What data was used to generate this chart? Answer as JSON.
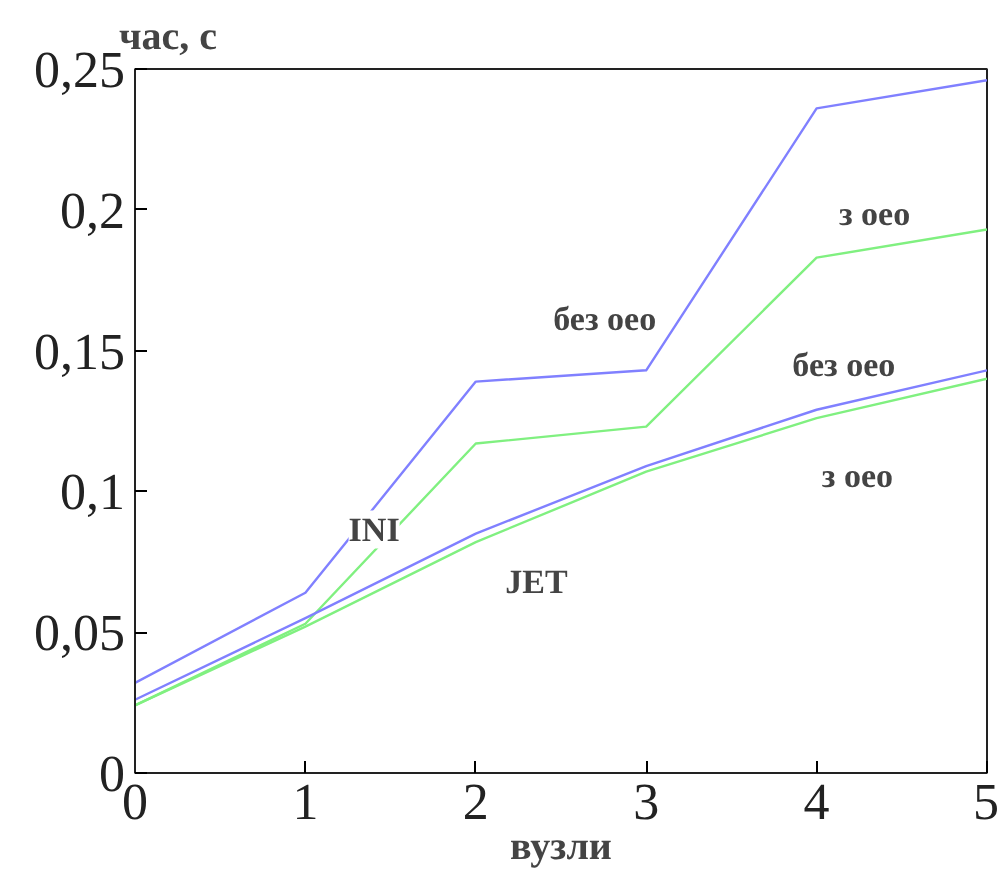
{
  "chart_data": {
    "type": "line",
    "ylabel": "час, с",
    "xlabel": "вузли",
    "x": [
      0,
      1,
      2,
      3,
      4,
      5
    ],
    "series": [
      {
        "color": "#8080ff",
        "values": [
          0.032,
          0.064,
          0.139,
          0.143,
          0.236,
          0.246
        ]
      },
      {
        "color": "#80f080",
        "values": [
          0.024,
          0.053,
          0.117,
          0.123,
          0.183,
          0.193
        ]
      },
      {
        "color": "#8080ff",
        "values": [
          0.026,
          0.055,
          0.085,
          0.109,
          0.129,
          0.143
        ]
      },
      {
        "color": "#80f080",
        "values": [
          0.024,
          0.052,
          0.082,
          0.107,
          0.126,
          0.14
        ]
      }
    ],
    "xlim": [
      0,
      5
    ],
    "xticks": [
      0,
      1,
      2,
      3,
      4,
      5
    ],
    "ylim": [
      0,
      0.25
    ],
    "yticks": [
      0,
      {
        "value": 0.05,
        "label": "0,05"
      },
      {
        "value": 0.1,
        "label": "0,1"
      },
      {
        "value": 0.15,
        "label": "0,15"
      },
      {
        "value": 0.2,
        "label": "0,2"
      },
      {
        "value": 0.25,
        "label": "0,25"
      }
    ],
    "annotations": [
      "INI",
      "JET",
      "без оео",
      "з оео",
      "без оео",
      "з оео"
    ],
    "grid": false,
    "marker": "none",
    "line_style": "solid"
  }
}
